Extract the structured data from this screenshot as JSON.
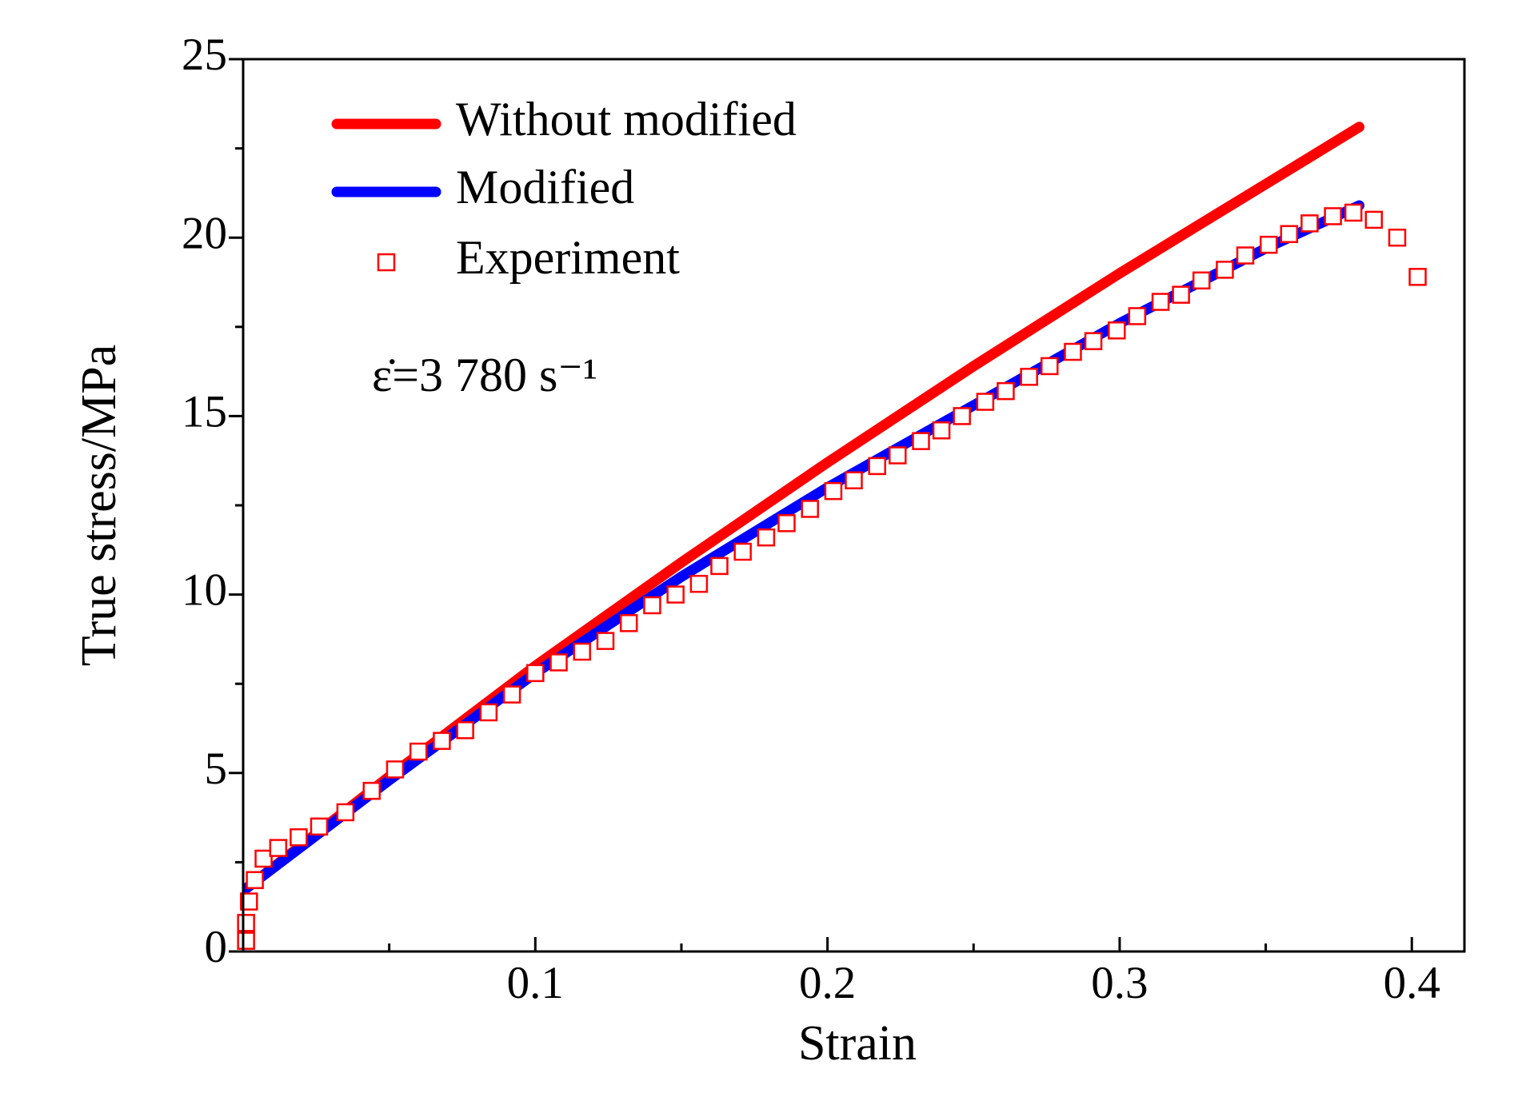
{
  "chart_data": {
    "type": "line",
    "xlabel": "Strain",
    "ylabel": "True stress/MPa",
    "annotation": "ε̇=3 780 s⁻¹",
    "xlim": [
      0,
      0.418
    ],
    "ylim": [
      0,
      25
    ],
    "xticks": [
      0.1,
      0.2,
      0.3,
      0.4
    ],
    "xminorticks": [
      0.05,
      0.15,
      0.25,
      0.35
    ],
    "yticks": [
      0,
      5,
      10,
      15,
      20,
      25
    ],
    "yminorticks": [
      2.5,
      7.5,
      12.5,
      17.5,
      22.5
    ],
    "legend": "upper left",
    "series": [
      {
        "name": "Without modified",
        "color": "#ff0000",
        "style": "line",
        "x": [
          0,
          0.05,
          0.1,
          0.15,
          0.2,
          0.25,
          0.3,
          0.35,
          0.382
        ],
        "values": [
          1.7,
          4.9,
          8.0,
          10.9,
          13.7,
          16.4,
          19.0,
          21.5,
          23.1
        ]
      },
      {
        "name": "Modified",
        "color": "#0000ff",
        "style": "line",
        "x": [
          0,
          0.05,
          0.1,
          0.15,
          0.2,
          0.25,
          0.3,
          0.35,
          0.382
        ],
        "values": [
          1.7,
          4.8,
          7.8,
          10.5,
          13.0,
          15.3,
          17.6,
          19.7,
          20.9
        ]
      },
      {
        "name": "Experiment",
        "color": "#ff0000",
        "style": "marker",
        "x": [
          0.001,
          0.001,
          0.002,
          0.004,
          0.007,
          0.012,
          0.019,
          0.026,
          0.035,
          0.044,
          0.052,
          0.06,
          0.068,
          0.076,
          0.084,
          0.092,
          0.1,
          0.108,
          0.116,
          0.124,
          0.132,
          0.14,
          0.148,
          0.156,
          0.163,
          0.171,
          0.179,
          0.186,
          0.194,
          0.202,
          0.209,
          0.217,
          0.224,
          0.232,
          0.239,
          0.246,
          0.254,
          0.261,
          0.269,
          0.276,
          0.284,
          0.291,
          0.299,
          0.306,
          0.314,
          0.321,
          0.328,
          0.336,
          0.343,
          0.351,
          0.358,
          0.365,
          0.373,
          0.38,
          0.387,
          0.395,
          0.402
        ],
        "values": [
          0.3,
          0.8,
          1.4,
          2.0,
          2.6,
          2.9,
          3.2,
          3.5,
          3.9,
          4.5,
          5.1,
          5.6,
          5.9,
          6.2,
          6.7,
          7.2,
          7.8,
          8.1,
          8.4,
          8.7,
          9.2,
          9.7,
          10.0,
          10.3,
          10.8,
          11.2,
          11.6,
          12.0,
          12.4,
          12.9,
          13.2,
          13.6,
          13.9,
          14.3,
          14.6,
          15.0,
          15.4,
          15.7,
          16.1,
          16.4,
          16.8,
          17.1,
          17.4,
          17.8,
          18.2,
          18.4,
          18.8,
          19.1,
          19.5,
          19.8,
          20.1,
          20.4,
          20.6,
          20.7,
          20.5,
          20.0,
          18.9
        ]
      }
    ]
  }
}
